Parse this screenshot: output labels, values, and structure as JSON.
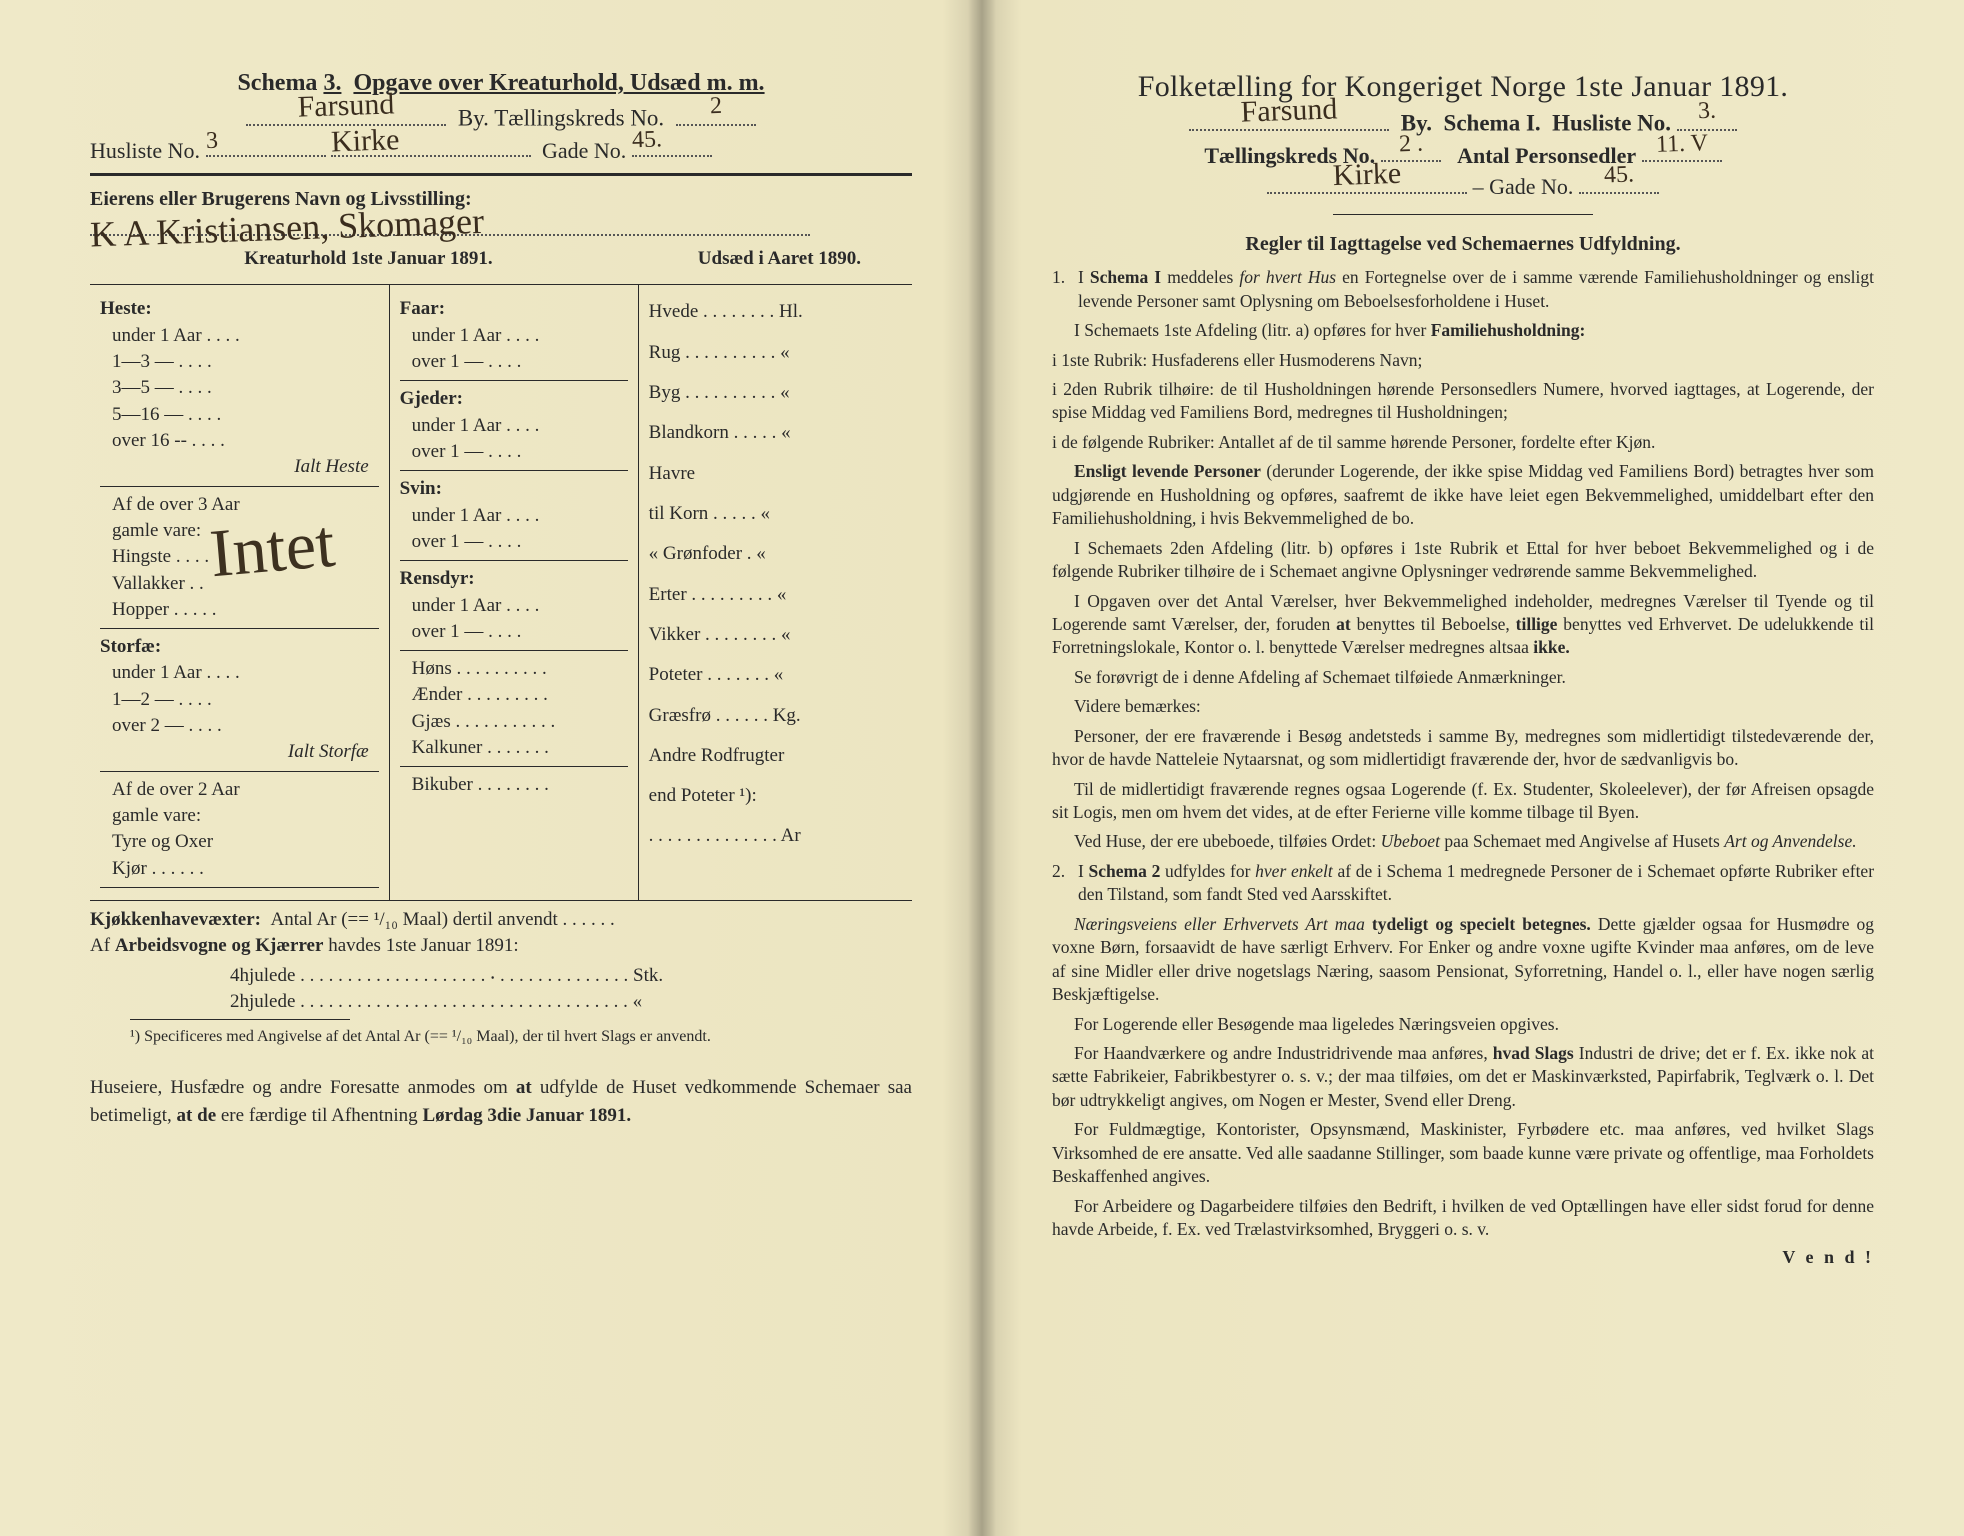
{
  "colors": {
    "paper_left": "#efe9c8",
    "paper_mid": "#ece5c1",
    "gutter": "#d6cfae",
    "ink": "#2a2a2a",
    "hand_ink": "#3a2d1e",
    "background": "#5a5248"
  },
  "typography": {
    "body_family": "Times New Roman, Georgia, serif",
    "hand_family": "Brush Script MT, Segoe Script, cursive",
    "header_left_pt": 24,
    "header_right_pt": 30,
    "body_pt": 19,
    "rules_pt": 17.5
  },
  "left": {
    "schema_line": {
      "schema_label": "Schema",
      "schema_no": "3.",
      "title_rest": "Opgave over Kreaturhold, Udsæd m. m."
    },
    "by_line": {
      "by_hand": "Farsund",
      "by_label": "By.  Tællingskreds No.",
      "kreds_hand": "2"
    },
    "husliste_line": {
      "label_a": "Husliste No.",
      "husliste_hand": "3",
      "mid_hand": "Kirke",
      "label_b": "Gade No.",
      "gade_hand": "45."
    },
    "owner_line": {
      "label": "Eierens eller Brugerens Navn og Livsstilling:",
      "hand": "K A Kristiansen, Skomager"
    },
    "col_headers": {
      "left": "Kreaturhold 1ste Januar 1891.",
      "right": "Udsæd i Aaret 1890."
    },
    "intet_hand": "Intet",
    "categories_A": [
      {
        "head": "Heste:",
        "items": [
          "under 1 Aar . . . .",
          "1—3   —  . . . .",
          "3—5   —  . . . .",
          "5—16 —  . . . .",
          "over 16 --  . . . ."
        ],
        "tail_ital": "Ialt Heste"
      },
      {
        "note_block": [
          "Af de over 3 Aar",
          "gamle vare:",
          "  Hingste . . . .",
          "  Vallakker . .",
          "  Hopper . . . . ."
        ]
      },
      {
        "head": "Storfæ:",
        "items": [
          "under 1 Aar . . . .",
          "1—2   —  . . . .",
          "over 2   —  . . . ."
        ],
        "tail_ital": "Ialt Storfæ"
      },
      {
        "note_block": [
          "Af de over 2 Aar",
          "gamle vare:",
          "  Tyre og Oxer",
          "  Kjør . . . . . ."
        ]
      }
    ],
    "categories_B": [
      {
        "head": "Faar:",
        "items": [
          "under 1 Aar . . . .",
          "over 1   —  . . . ."
        ]
      },
      {
        "head": "Gjeder:",
        "items": [
          "under 1 Aar . . . .",
          "over 1   —  . . . ."
        ]
      },
      {
        "head": "Svin:",
        "items": [
          "under 1 Aar . . . .",
          "over 1   —  . . . ."
        ]
      },
      {
        "head": "Rensdyr:",
        "items": [
          "under 1 Aar . . . .",
          "over 1   —  . . . ."
        ]
      },
      {
        "plain": [
          "Høns . . . . . . . . . .",
          "Ænder . . . . . . . . .",
          "Gjæs . . . . . . . . . . .",
          "Kalkuner . . . . . . .",
          "",
          "Bikuber . . . . . . . ."
        ]
      }
    ],
    "categories_C": [
      "Hvede . . . . . . . . Hl.",
      "Rug . . . . . . . . . .  «",
      "Byg . . . . . . . . . .  «",
      "Blandkorn . . . . .  «",
      "Havre",
      "  til Korn . . . . .  «",
      "  « Grønfoder .  «",
      "Erter . . . . . . . . .  «",
      "Vikker . . . . . . . .  «",
      "Poteter . . . . . . .  «",
      "Græsfrø . . . . . . Kg.",
      "Andre Rodfrugter",
      "end Poteter ¹):",
      ". . . . . . . . . . . . . . Ar"
    ],
    "after_table": {
      "line1_a": "Kjøkkenhavevæxter:",
      "line1_b": "Antal Ar (== ¹/₁₀ Maal) dertil anvendt . . . . . .",
      "line2": "Af Arbeidsvogne og Kjærrer havdes 1ste Januar 1891:",
      "line3": "4hjulede . . . . . . . . . . . . . . . . . . . . ⸳ . . . . . . . . . . . . . . Stk.",
      "line4": "2hjulede . . . . . . . . . . . . . . . . . . . . . . . . . . . . . . . . . . .   «"
    },
    "footnote": "¹) Specificeres med Angivelse af det Antal Ar (== ¹/₁₀ Maal), der til hvert Slags er anvendt.",
    "bottom": "Huseiere, Husfædre og andre Foresatte anmodes om at udfylde de Huset vedkommende Schemaer saa betimeligt, at de ere færdige til Afhentning Lørdag 3die Januar 1891."
  },
  "right": {
    "header": "Folketælling for Kongeriget Norge 1ste Januar 1891.",
    "line1": {
      "by_hand": "Farsund",
      "rest": "By.  Schema I.  Husliste No.",
      "no_hand": "3."
    },
    "line2": {
      "a": "Tællingskreds No.",
      "a_hand": "2 .",
      "b": "Antal Personsedler",
      "b_hand": "11. V"
    },
    "line3": {
      "gade_hand": "Kirke",
      "dash": "– Gade No.",
      "no_hand": "45."
    },
    "rules_title": "Regler til Iagttagelse ved Schemaernes Udfyldning.",
    "paras": [
      {
        "n": "1.",
        "t": "I <b>Schema I</b> meddeles <i>for hvert Hus</i> en Fortegnelse over de i samme værende Familiehusholdninger og ensligt levende Personer samt Oplysning om Beboelsesforholdene i Huset."
      },
      {
        "t": "I Schemaets 1ste Afdeling (litr. a) opføres for hver <b>Familiehusholdning:</b>"
      },
      {
        "t": "i 1ste Rubrik: Husfaderens eller Husmoderens Navn;",
        "noi": true
      },
      {
        "t": "i 2den Rubrik tilhøire: de til Husholdningen hørende Personsedlers Numere, hvorved iagttages, at Logerende, der spise Middag ved Familiens Bord, medregnes til Husholdningen;",
        "noi": true
      },
      {
        "t": "i de følgende Rubriker: Antallet af de til samme hørende Personer, fordelte efter Kjøn.",
        "noi": true
      },
      {
        "t": "<b>Ensligt levende Personer</b> (derunder Logerende, der ikke spise Middag ved Familiens Bord) betragtes hver som udgjørende en Husholdning og opføres, saafremt de ikke have leiet egen Bekvemmelighed, umiddelbart efter den Familiehusholdning, i hvis Bekvemmelighed de bo."
      },
      {
        "t": "I Schemaets 2den Afdeling (litr. b) opføres i 1ste Rubrik et Ettal for hver beboet Bekvemmelighed og i de følgende Rubriker tilhøire de i Schemaet angivne Oplysninger vedrørende samme Bekvemmelighed."
      },
      {
        "t": "I Opgaven over det Antal Værelser, hver Bekvemmelighed indeholder, medregnes Værelser til Tyende og til Logerende samt Værelser, der, foruden <b>at</b> benyttes til Beboelse, <b>tillige</b> benyttes ved Erhvervet. De udelukkende til Forretningslokale, Kontor o. l. benyttede Værelser medregnes altsaa <b>ikke.</b>"
      },
      {
        "t": "Se forøvrigt de i denne Afdeling af Schemaet tilføiede Anmærkninger."
      },
      {
        "t": "Videre bemærkes:"
      },
      {
        "t": "Personer, der ere fraværende i Besøg andetsteds i samme By, medregnes som midlertidigt tilstedeværende der, hvor de havde Natteleie Nytaarsnat, og som midlertidigt fraværende der, hvor de sædvanligvis bo."
      },
      {
        "t": "Til de midlertidigt fraværende regnes ogsaa Logerende (f. Ex. Studenter, Skoleelever), der før Afreisen opsagde sit Logis, men om hvem det vides, at de efter Ferierne ville komme tilbage til Byen."
      },
      {
        "t": "Ved Huse, der ere ubeboede, tilføies Ordet: <i>Ubeboet</i> paa Schemaet med Angivelse af Husets <i>Art og Anvendelse.</i>"
      },
      {
        "n": "2.",
        "t": "I <b>Schema 2</b> udfyldes for <i>hver enkelt</i> af de i Schema 1 medregnede Personer de i Schemaet opførte Rubriker efter den Tilstand, som fandt Sted ved Aarsskiftet."
      },
      {
        "t": "<i>Næringsveiens eller Erhvervets Art maa</i> <b>tydeligt og specielt betegnes.</b> Dette gjælder ogsaa for Husmødre og voxne Børn, forsaavidt de have særligt Erhverv. For Enker og andre voxne ugifte Kvinder maa anføres, om de leve af sine Midler eller drive nogetslags Næring, saasom Pensionat, Syforretning, Handel o. l., eller have nogen særlig Beskjæftigelse."
      },
      {
        "t": "For Logerende eller Besøgende maa ligeledes Næringsveien opgives."
      },
      {
        "t": "For Haandværkere og andre Industridrivende maa anføres, <b>hvad Slags</b> Industri de drive; det er f. Ex. ikke nok at sætte Fabrikeier, Fabrikbestyrer o. s. v.; der maa tilføies, om det er Maskinværksted, Papirfabrik, Teglværk o. l. Det bør udtrykkeligt angives, om Nogen er Mester, Svend eller Dreng."
      },
      {
        "t": "For Fuldmægtige, Kontorister, Opsynsmænd, Maskinister, Fyrbødere etc. maa anføres, ved hvilket Slags Virksomhed de ere ansatte. Ved alle saadanne Stillinger, som baade kunne være private og offentlige, maa Forholdets Beskaffenhed angives."
      },
      {
        "t": "For Arbeidere og Dagarbeidere tilføies den Bedrift, i hvilken de ved Optællingen have eller sidst forud for denne havde Arbeide, f. Ex. ved Trælastvirksomhed, Bryggeri o. s. v."
      }
    ],
    "vend": "V e n d !"
  }
}
